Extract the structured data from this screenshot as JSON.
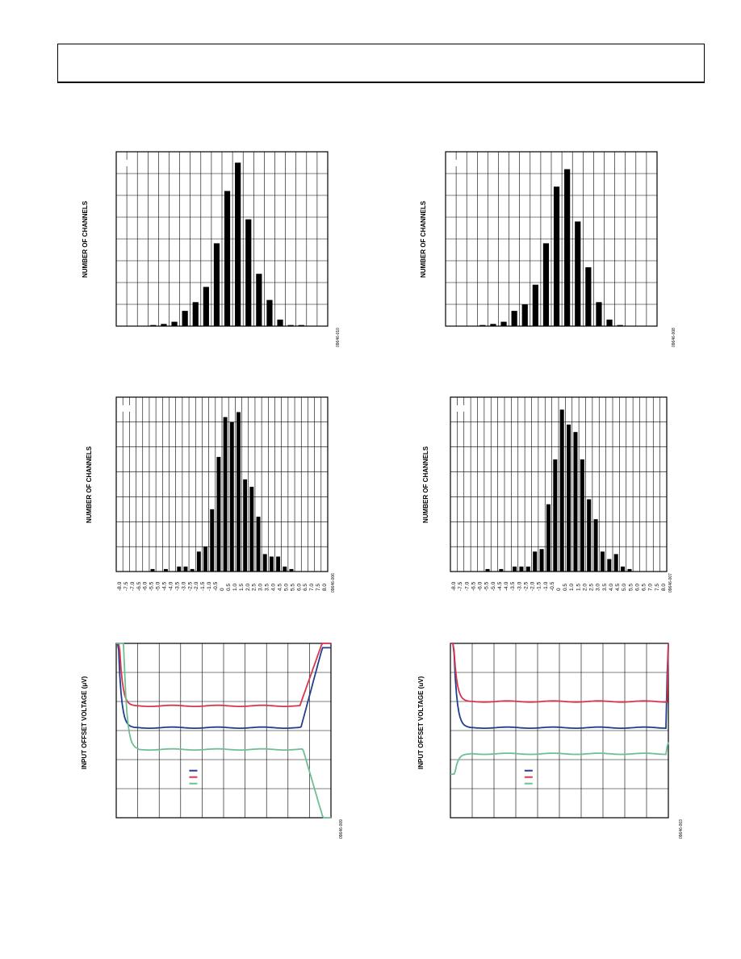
{
  "header": {
    "title": ""
  },
  "colors": {
    "blue": "#1f3f8c",
    "red": "#d8354f",
    "green": "#6fbf94",
    "grid": "#000000",
    "bar": "#000000"
  },
  "chart_data": [
    {
      "type": "bar",
      "ylabel": "NUMBER OF CHANNELS",
      "figure_code": "09646-010",
      "bar_count": 18,
      "values": [
        0,
        0,
        0.5,
        1,
        2,
        7,
        11,
        18,
        38,
        62,
        75,
        49,
        24,
        12,
        3,
        0.5,
        0.5,
        0
      ],
      "ylim": [
        0,
        80
      ]
    },
    {
      "type": "bar",
      "ylabel": "NUMBER OF CHANNELS",
      "figure_code": "09646-008",
      "bar_count": 18,
      "values": [
        0,
        0,
        0.5,
        1,
        2,
        7,
        10,
        19,
        38,
        64,
        72,
        48,
        27,
        11,
        3,
        0.5,
        0,
        0
      ],
      "ylim": [
        0,
        80
      ]
    },
    {
      "type": "bar",
      "ylabel": "NUMBER OF CHANNELS",
      "figure_code": "09646-006",
      "categories": [
        "-8.0",
        "-7.5",
        "-7.0",
        "-6.5",
        "-6.0",
        "-5.5",
        "-5.0",
        "-4.5",
        "-4.0",
        "-3.5",
        "-3.0",
        "-2.5",
        "-2.0",
        "-1.5",
        "-1.0",
        "-0.5",
        "0",
        "0.5",
        "1.0",
        "1.5",
        "2.0",
        "2.5",
        "3.0",
        "3.5",
        "4.0",
        "4.5",
        "5.0",
        "5.5",
        "6.0",
        "6.5",
        "7.0",
        "7.5",
        "8.0"
      ],
      "values": [
        0,
        0,
        0,
        0,
        0,
        1,
        0,
        1,
        0,
        2,
        2,
        1,
        8,
        10,
        25,
        46,
        62,
        60,
        64,
        37,
        34,
        22,
        7,
        6,
        6,
        2,
        1,
        0,
        0,
        0,
        0,
        0,
        0
      ],
      "ylim": [
        0,
        70
      ]
    },
    {
      "type": "bar",
      "ylabel": "NUMBER OF CHANNELS",
      "figure_code": "09646-007",
      "categories": [
        "-8.0",
        "-7.5",
        "-7.0",
        "-6.5",
        "-6.0",
        "-5.5",
        "-5.0",
        "-4.5",
        "-4.0",
        "-3.5",
        "-3.0",
        "-2.5",
        "-2.0",
        "-1.5",
        "-1.0",
        "-0.5",
        "0",
        "0.5",
        "1.0",
        "1.5",
        "2.0",
        "2.5",
        "3.0",
        "3.5",
        "4.0",
        "4.5",
        "5.0",
        "5.5",
        "6.0",
        "6.5",
        "7.0",
        "7.5",
        "8.0"
      ],
      "values": [
        0,
        0,
        0,
        0,
        0,
        1,
        0,
        1,
        0,
        2,
        2,
        2,
        8,
        9,
        27,
        45,
        65,
        59,
        56,
        45,
        29,
        21,
        8,
        5,
        7,
        2,
        1,
        0,
        0,
        0,
        0,
        0,
        0
      ],
      "ylim": [
        0,
        70
      ]
    },
    {
      "type": "line",
      "ylabel": "INPUT OFFSET VOLTAGE (μV)",
      "figure_code": "09646-009",
      "series": [
        {
          "name": "",
          "color": "blue",
          "level": 3.1,
          "lead_start": 6.0,
          "lead_x": 0.5,
          "tail_x": 8.6,
          "tail_level": 5.85
        },
        {
          "name": "",
          "color": "red",
          "level": 3.85,
          "lead_start": 6.0,
          "lead_x": 0.55,
          "tail_x": 8.55,
          "tail_level": 6.0
        },
        {
          "name": "",
          "color": "green",
          "level": 2.35,
          "lead_start": 6.0,
          "lead_x": 0.75,
          "tail_x": 8.7,
          "tail_level": 0
        }
      ],
      "xlim": [
        0,
        10
      ],
      "ylim": [
        0,
        6
      ]
    },
    {
      "type": "line",
      "ylabel": "INPUT OFFSET VOLTAGE (uV)",
      "figure_code": "09646-003",
      "series": [
        {
          "name": "",
          "color": "blue",
          "level": 3.1,
          "lead_start": 6.0,
          "lead_x": 0.55,
          "tail_x": 9.9,
          "tail_level": 6.0
        },
        {
          "name": "",
          "color": "red",
          "level": 4.0,
          "lead_start": 6.0,
          "lead_x": 0.55,
          "tail_x": 9.95,
          "tail_level": 6.0
        },
        {
          "name": "",
          "color": "green",
          "level": 2.2,
          "lead_start": 1.5,
          "lead_x": 0.6,
          "tail_x": 9.9,
          "tail_level": 2.6
        }
      ],
      "xlim": [
        0,
        10
      ],
      "ylim": [
        0,
        6
      ]
    }
  ]
}
